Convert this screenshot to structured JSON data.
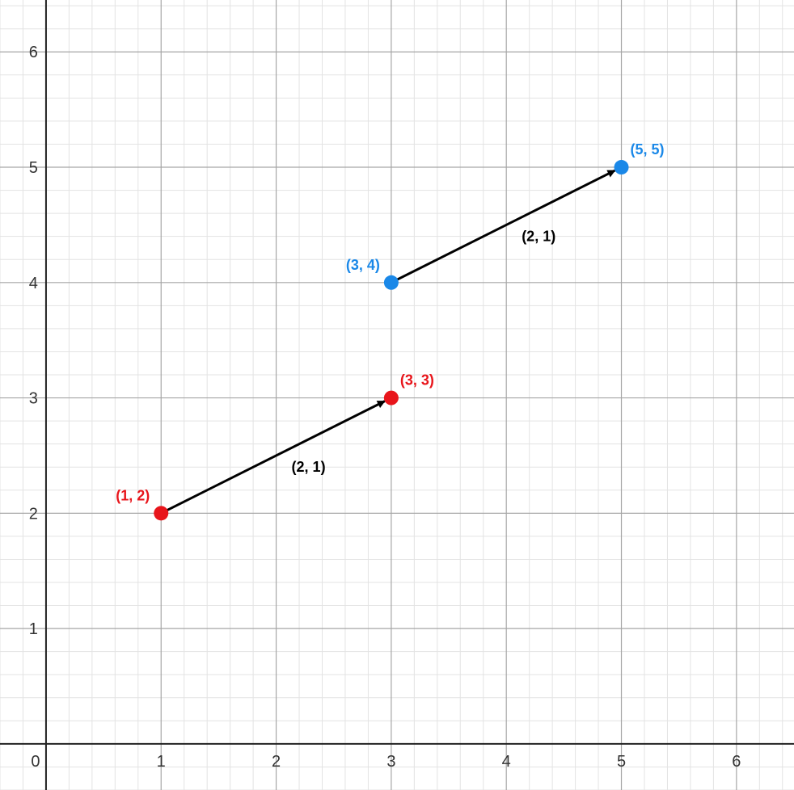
{
  "chart_data": {
    "type": "scatter",
    "xlim": [
      -0.4,
      6.5
    ],
    "ylim": [
      -0.4,
      6.45
    ],
    "grid": true,
    "minor_grid_per_unit": 5,
    "x_ticks": [
      "0",
      "1",
      "2",
      "3",
      "4",
      "5",
      "6"
    ],
    "y_ticks": [
      "1",
      "2",
      "3",
      "4",
      "5",
      "6"
    ],
    "points": [
      {
        "x": 1,
        "y": 2,
        "label": "(1, 2)",
        "color": "#e8151b"
      },
      {
        "x": 3,
        "y": 3,
        "label": "(3, 3)",
        "color": "#e8151b"
      },
      {
        "x": 3,
        "y": 4,
        "label": "(3, 4)",
        "color": "#1a88e8"
      },
      {
        "x": 5,
        "y": 5,
        "label": "(5, 5)",
        "color": "#1a88e8"
      }
    ],
    "vectors": [
      {
        "from": [
          1,
          2
        ],
        "to": [
          3,
          3
        ],
        "label": "(2, 1)",
        "color": "#000000"
      },
      {
        "from": [
          3,
          4
        ],
        "to": [
          5,
          5
        ],
        "label": "(2, 1)",
        "color": "#000000"
      }
    ]
  }
}
